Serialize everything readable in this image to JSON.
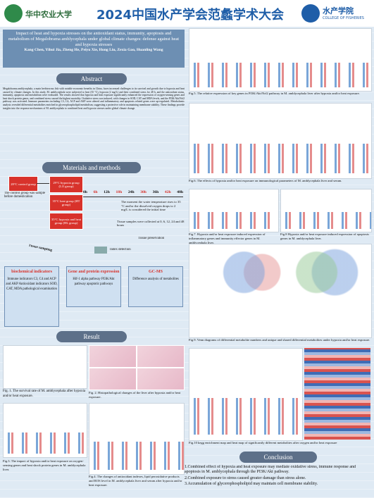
{
  "header": {
    "left_logo": "华中农业大学",
    "title": "2024中国水产学会范蠡学术大会",
    "right_logo": "水产学院",
    "right_logo_sub": "COLLEGE OF FISHERIES"
  },
  "paper": {
    "title": "Impact of heat and hypoxia stresses on the antioxidant status, immunity, apoptosis and metabolism of Megalobrama amblycephala under global climate changes: defense against heat and hypoxia stresses",
    "authors": "Kang Chen, Yihui Jia, Zheng He, Peiyu Xie, Hong Liu, Zexia Gao, Huanling Wang"
  },
  "abstract": {
    "heading": "Abstract",
    "text": "Megalobrama amblycephala, a main herbivorous fish with notable economic benefits in China, faces increased challenges to its survival and growth due to hypoxia and heat caused by climate changes. In this study, M. amblycephala were subjected to heat (35 °C), hypoxia (2 mg/L) and their combined stress for 48 h, and the antioxidant status, immunity, apoptosis and metabolism were evaluated. The results showed that hypoxia and heat exposure significantly enhanced the expression of oxygen-sensing genes and heat shock protein genes, and combined stress caused the highest mortality. Oxidative stress was induced, with changes in SOD, CAT and MDA levels, and the PI3K/Akt/Nrf2 pathway was activated. Immune parameters including C3, C4, ACP and AKP were altered and inflammatory and apoptosis related genes were up-regulated. Metabolomic analysis revealed differential metabolites enriched in glycerophospholipid metabolism, suggesting a protective role in maintaining membrane stability. These findings provide insights into the response mechanisms of M. amblycephala to combined heat and hypoxia stresses under global climate change."
  },
  "methods": {
    "heading": "Materials and methods",
    "control": "28°C control group",
    "control_note": "The control group was sample before domestication",
    "groups": [
      "29°C hypoxia group (LO group)",
      "35°C heat group (HT group)",
      "35°C hypoxia and heat group (HL group)"
    ],
    "times": [
      "0h",
      "6h",
      "12h",
      "18h",
      "24h",
      "30h",
      "36h",
      "42h",
      "48h"
    ],
    "initial_note": "The moment the water temperature rises to 35 °C and/or the dissolved oxygen drops to 2 mg/L is considered the initial time",
    "sampling_note": "Tissue samples were collected at 0, 6, 12, 24 and 48 hours",
    "tissue_sampling": "Tissue sampling",
    "tissue_preservation": "Tissue preservation",
    "index_detection": "Index detection",
    "boxes": [
      {
        "title": "biochemical indicators",
        "text": "Immune indicators C3, C4 and ACP and AKP Antioxidant indicators SOD, CAT, MDA pathological examination"
      },
      {
        "title": "Gene and protein expression",
        "text": "Hif-1 alpha pathway PI3K/Akt pathway apoptotic pathways"
      },
      {
        "title": "GC-MS",
        "text": "Difference analysis of metabolites"
      }
    ]
  },
  "result": {
    "heading": "Result",
    "captions": [
      "Fig. 1. The survival rate of M. amblycephala after hypoxia and/or heat exposure.",
      "Fig. 2. Histopathological changes of the liver after hypoxia and/or heat exposure.",
      "Fig.3. The impact of hypoxia and/or heat exposure on oxygen-sensing genes and heat shock protein genes in M. amblycephala liver.",
      "Fig.4. The changes of antioxidant indexes, lipid peroxidative products and ROS level in M. amblycephala liver and serum after hypoxia and/or heat exposure.",
      "Fig.5. The relative expression of key genes in PI3K/Akt/Nrf2 pathway in M. amblycephala liver after hypoxia and/or heat exposure.",
      "Fig.6. The effects of hypoxia and/or heat exposure on immunological parameters of M. amblycephala liver and serum.",
      "Fig.7. Hypoxia and/or heat exposure induced expression of inflammatory genes and immunity effector genes in M. amblycephala liver.",
      "Fig.8 Hypoxia and/or heat exposure induced expression of apoptosis genes in M. amblycephala liver.",
      "Fig.9. Venn diagrams of differential metabolite numbers and unique and shared differential metabolites under hypoxia and/or heat exposure.",
      "Fig.10 kegg enrichment map and heat map of significantly different metabolites after oxygen and/or heat exposure"
    ]
  },
  "conclusion": {
    "heading": "Conclusion",
    "items": [
      "1.Combined effect of hypoxia and heat exposure may mediate oxidative stress, immune response and apoptosis in M. amblycephala through the PI3K/Akt pathway.",
      "2.Combined exposure to stress caused greater damage than stress alone.",
      "3.Accumulation of glycerophospholipid may maintain cell membrane stability."
    ]
  }
}
